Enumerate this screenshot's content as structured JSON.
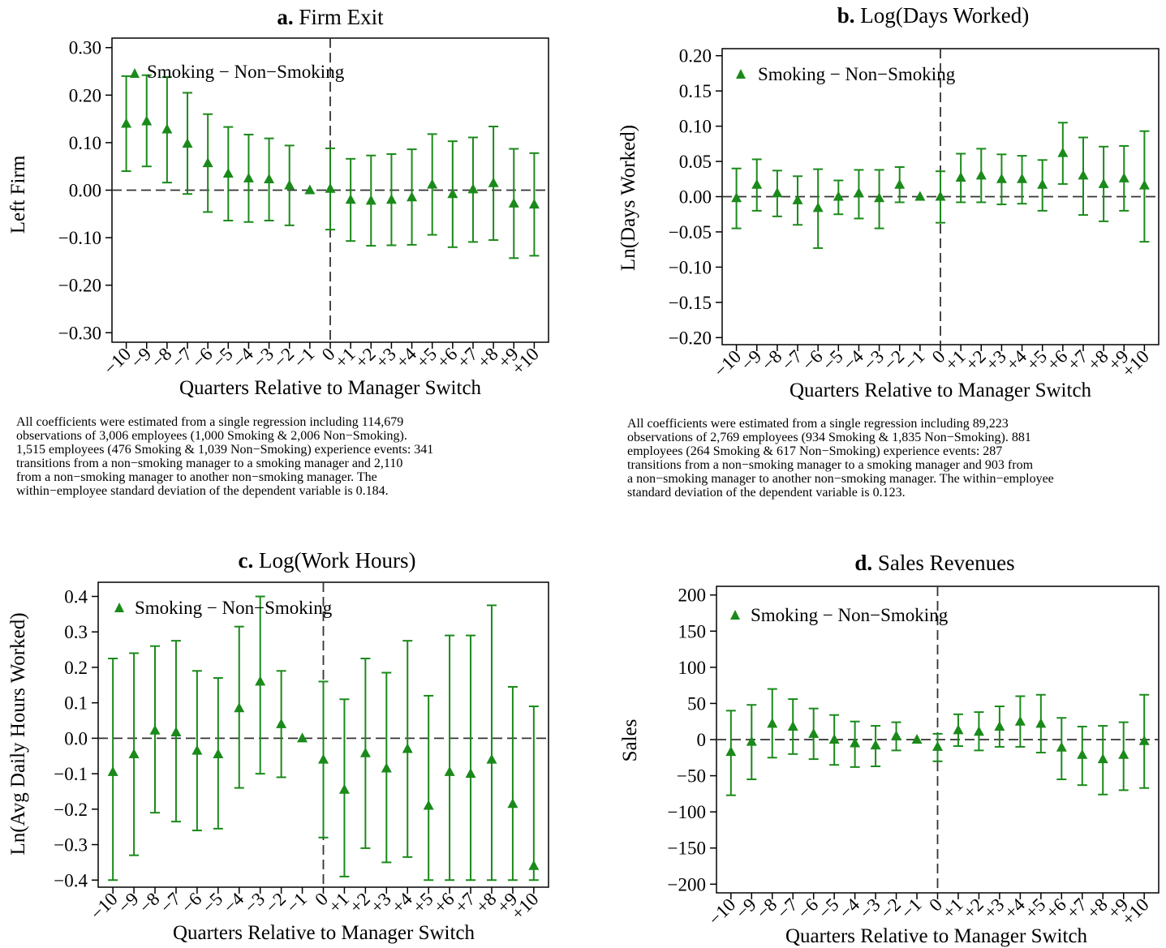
{
  "colors": {
    "marker": "#1a8a1a",
    "axis": "#000000",
    "zero_line": "#333333"
  },
  "panels": [
    {
      "panel_letter": "a.",
      "title": "Firm Exit",
      "ylabel": "Left Firm",
      "xlabel": "Quarters Relative to Manager Switch",
      "legend": "Smoking − Non−Smoking",
      "note_lines": [
        "All coefficients were estimated from a single regression including 114,679",
        "observations of 3,006 employees (1,000 Smoking & 2,006 Non−Smoking).",
        "1,515 employees (476 Smoking & 1,039 Non−Smoking) experience events: 341",
        "transitions  from a non−smoking manager to a smoking manager and 2,110",
        "from a non−smoking manager to another non−smoking manager.  The",
        "within−employee standard deviation of the dependent variable is 0.184."
      ]
    },
    {
      "panel_letter": "b.",
      "title": "Log(Days Worked)",
      "ylabel": "Ln(Days Worked)",
      "xlabel": "Quarters Relative to Manager Switch",
      "legend": "Smoking − Non−Smoking",
      "note_lines": [
        "All coefficients were estimated from a single regression including 89,223",
        "observations of 2,769 employees (934 Smoking & 1,835 Non−Smoking).  881",
        "employees (264 Smoking & 617 Non−Smoking) experience events: 287",
        "transitions  from a non−smoking manager to a smoking manager and 903 from",
        "a non−smoking manager to another non−smoking manager.  The within−employee",
        "standard deviation of the dependent variable is 0.123."
      ]
    },
    {
      "panel_letter": "c.",
      "title": "Log(Work Hours)",
      "ylabel": "Ln(Avg Daily Hours Worked)",
      "xlabel": "Quarters Relative to Manager Switch",
      "legend": "Smoking − Non−Smoking",
      "note_lines": []
    },
    {
      "panel_letter": "d.",
      "title": "Sales Revenues",
      "ylabel": "Sales",
      "xlabel": "Quarters Relative to Manager Switch",
      "legend": "Smoking − Non−Smoking",
      "note_lines": []
    }
  ],
  "chart_data": [
    {
      "type": "scatter",
      "title": "a. Firm Exit",
      "xlabel": "Quarters Relative to Manager Switch",
      "ylabel": "Left Firm",
      "series_name": "Smoking − Non−Smoking",
      "x": [
        -10,
        -9,
        -8,
        -7,
        -6,
        -5,
        -4,
        -3,
        -2,
        -1,
        0,
        1,
        2,
        3,
        4,
        5,
        6,
        7,
        8,
        9,
        10
      ],
      "x_tick_labels": [
        "−10",
        "−9",
        "−8",
        "−7",
        "−6",
        "−5",
        "−4",
        "−3",
        "−2",
        "−1",
        "0",
        "+1",
        "+2",
        "+3",
        "+4",
        "+5",
        "+6",
        "+7",
        "+8",
        "+9",
        "+10"
      ],
      "y": [
        0.14,
        0.145,
        0.128,
        0.098,
        0.057,
        0.035,
        0.025,
        0.023,
        0.01,
        0.0,
        0.003,
        -0.02,
        -0.022,
        -0.02,
        -0.015,
        0.012,
        -0.008,
        0.002,
        0.015,
        -0.028,
        -0.03
      ],
      "ci_low": [
        0.04,
        0.05,
        0.016,
        -0.008,
        -0.046,
        -0.064,
        -0.067,
        -0.064,
        -0.074,
        0.0,
        -0.083,
        -0.107,
        -0.117,
        -0.116,
        -0.115,
        -0.094,
        -0.12,
        -0.109,
        -0.105,
        -0.143,
        -0.138
      ],
      "ci_high": [
        0.24,
        0.242,
        0.238,
        0.205,
        0.16,
        0.133,
        0.117,
        0.109,
        0.094,
        0.0,
        0.088,
        0.066,
        0.073,
        0.076,
        0.086,
        0.118,
        0.103,
        0.111,
        0.134,
        0.087,
        0.078
      ],
      "ylim": [
        -0.32,
        0.32
      ],
      "y_ticks": [
        -0.3,
        -0.2,
        -0.1,
        0.0,
        0.1,
        0.2,
        0.3
      ],
      "y_tick_labels": [
        "−0.30",
        "−0.20",
        "−0.10",
        "0.00",
        "0.10",
        "0.20",
        "0.30"
      ],
      "reference_lines": {
        "horizontal_y": 0,
        "vertical_x": 0
      },
      "legend_position": "top-left",
      "grid": false
    },
    {
      "type": "scatter",
      "title": "b. Log(Days Worked)",
      "xlabel": "Quarters Relative to Manager Switch",
      "ylabel": "Ln(Days Worked)",
      "series_name": "Smoking − Non−Smoking",
      "x": [
        -10,
        -9,
        -8,
        -7,
        -6,
        -5,
        -4,
        -3,
        -2,
        -1,
        0,
        1,
        2,
        3,
        4,
        5,
        6,
        7,
        8,
        9,
        10
      ],
      "x_tick_labels": [
        "−10",
        "−9",
        "−8",
        "−7",
        "−6",
        "−5",
        "−4",
        "−3",
        "−2",
        "−1",
        "0",
        "+1",
        "+2",
        "+3",
        "+4",
        "+5",
        "+6",
        "+7",
        "+8",
        "+9",
        "+10"
      ],
      "y": [
        -0.002,
        0.017,
        0.005,
        -0.005,
        -0.016,
        0.0,
        0.005,
        -0.002,
        0.017,
        0.0,
        0.0,
        0.027,
        0.03,
        0.025,
        0.025,
        0.017,
        0.062,
        0.03,
        0.018,
        0.026,
        0.016
      ],
      "ci_low": [
        -0.045,
        -0.02,
        -0.028,
        -0.04,
        -0.073,
        -0.025,
        -0.031,
        -0.045,
        -0.008,
        0.0,
        -0.037,
        -0.008,
        -0.008,
        -0.011,
        -0.01,
        -0.02,
        0.018,
        -0.026,
        -0.035,
        -0.02,
        -0.064
      ],
      "ci_high": [
        0.04,
        0.053,
        0.037,
        0.029,
        0.039,
        0.023,
        0.038,
        0.038,
        0.042,
        0.0,
        0.036,
        0.061,
        0.068,
        0.06,
        0.058,
        0.052,
        0.105,
        0.084,
        0.071,
        0.072,
        0.093
      ],
      "ylim": [
        -0.21,
        0.21
      ],
      "y_ticks": [
        -0.2,
        -0.15,
        -0.1,
        -0.05,
        0.0,
        0.05,
        0.1,
        0.15,
        0.2
      ],
      "y_tick_labels": [
        "−0.20",
        "−0.15",
        "−0.10",
        "−0.05",
        "0.00",
        "0.05",
        "0.10",
        "0.15",
        "0.20"
      ],
      "reference_lines": {
        "horizontal_y": 0,
        "vertical_x": 0
      },
      "legend_position": "top-left",
      "grid": false
    },
    {
      "type": "scatter",
      "title": "c. Log(Work Hours)",
      "xlabel": "Quarters Relative to Manager Switch",
      "ylabel": "Ln(Avg Daily Hours Worked)",
      "series_name": "Smoking − Non−Smoking",
      "x": [
        -10,
        -9,
        -8,
        -7,
        -6,
        -5,
        -4,
        -3,
        -2,
        -1,
        0,
        1,
        2,
        3,
        4,
        5,
        6,
        7,
        8,
        9,
        10
      ],
      "x_tick_labels": [
        "−10",
        "−9",
        "−8",
        "−7",
        "−6",
        "−5",
        "−4",
        "−3",
        "−2",
        "−1",
        "0",
        "+1",
        "+2",
        "+3",
        "+4",
        "+5",
        "+6",
        "+7",
        "+8",
        "+9",
        "+10"
      ],
      "y": [
        -0.095,
        -0.045,
        0.022,
        0.017,
        -0.035,
        -0.045,
        0.085,
        0.16,
        0.04,
        0.0,
        -0.06,
        -0.145,
        -0.042,
        -0.085,
        -0.03,
        -0.19,
        -0.095,
        -0.1,
        -0.06,
        -0.185,
        -0.36
      ],
      "ci_low": [
        -0.4,
        -0.33,
        -0.21,
        -0.235,
        -0.26,
        -0.255,
        -0.14,
        -0.1,
        -0.11,
        0.0,
        -0.28,
        -0.39,
        -0.31,
        -0.35,
        -0.335,
        -0.4,
        -0.4,
        -0.4,
        -0.4,
        -0.4,
        -0.4
      ],
      "ci_high": [
        0.225,
        0.24,
        0.26,
        0.275,
        0.19,
        0.17,
        0.315,
        0.4,
        0.19,
        0.0,
        0.16,
        0.11,
        0.225,
        0.185,
        0.275,
        0.12,
        0.29,
        0.29,
        0.375,
        0.145,
        0.09
      ],
      "ylim": [
        -0.42,
        0.44
      ],
      "y_ticks": [
        -0.4,
        -0.3,
        -0.2,
        -0.1,
        0.0,
        0.1,
        0.2,
        0.3,
        0.4
      ],
      "y_tick_labels": [
        "−0.4",
        "−0.3",
        "−0.2",
        "−0.1",
        "0.0",
        "0.1",
        "0.2",
        "0.3",
        "0.4"
      ],
      "reference_lines": {
        "horizontal_y": 0,
        "vertical_x": 0
      },
      "legend_position": "top-left",
      "grid": false
    },
    {
      "type": "scatter",
      "title": "d. Sales Revenues",
      "xlabel": "Quarters Relative to Manager Switch",
      "ylabel": "Sales",
      "series_name": "Smoking − Non−Smoking",
      "x": [
        -10,
        -9,
        -8,
        -7,
        -6,
        -5,
        -4,
        -3,
        -2,
        -1,
        0,
        1,
        2,
        3,
        4,
        5,
        6,
        7,
        8,
        9,
        10
      ],
      "x_tick_labels": [
        "−10",
        "−9",
        "−8",
        "−7",
        "−6",
        "−5",
        "−4",
        "−3",
        "−2",
        "−1",
        "0",
        "+1",
        "+2",
        "+3",
        "+4",
        "+5",
        "+6",
        "+7",
        "+8",
        "+9",
        "+10"
      ],
      "y": [
        -17,
        -3,
        22,
        18,
        8,
        0,
        -5,
        -8,
        5,
        0,
        -10,
        13,
        11,
        18,
        25,
        22,
        -11,
        -21,
        -27,
        -21,
        -2
      ],
      "ci_low": [
        -77,
        -55,
        -25,
        -20,
        -27,
        -35,
        -38,
        -37,
        -15,
        0,
        -30,
        -9,
        -15,
        -10,
        -10,
        -18,
        -55,
        -63,
        -76,
        -70,
        -67
      ],
      "ci_high": [
        40,
        48,
        70,
        56,
        43,
        34,
        25,
        19,
        24,
        0,
        8,
        35,
        38,
        46,
        60,
        62,
        30,
        18,
        19,
        24,
        62
      ],
      "ylim": [
        -212,
        212
      ],
      "y_ticks": [
        -200,
        -150,
        -100,
        -50,
        0,
        50,
        100,
        150,
        200
      ],
      "y_tick_labels": [
        "−200",
        "−150",
        "−100",
        "−50",
        "0",
        "50",
        "100",
        "150",
        "200"
      ],
      "reference_lines": {
        "horizontal_y": 0,
        "vertical_x": 0
      },
      "legend_position": "top-left",
      "grid": false
    }
  ]
}
